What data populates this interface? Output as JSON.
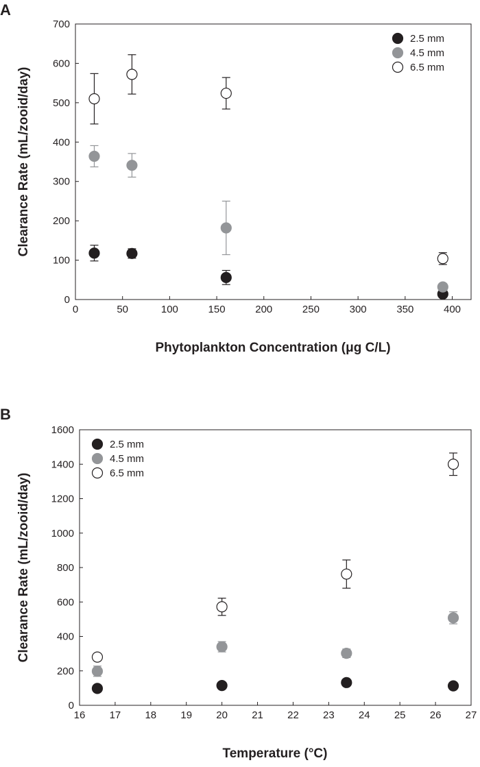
{
  "chart_data": [
    {
      "type": "scatter",
      "panel_label": "A",
      "xlabel": "Phytoplankton Concentration (μg C/L)",
      "ylabel": "Clearance Rate (mL/zooid/day)",
      "xlim": [
        0,
        420
      ],
      "ylim": [
        0,
        700
      ],
      "x_ticks": [
        0,
        50,
        100,
        150,
        200,
        250,
        300,
        350,
        400
      ],
      "y_ticks": [
        0,
        100,
        200,
        300,
        400,
        500,
        600,
        700
      ],
      "legend_position": "top-right",
      "series": [
        {
          "name": "2.5 mm",
          "marker": "filled-black",
          "color": "#231f20",
          "x": [
            20,
            60,
            160,
            390
          ],
          "y": [
            118,
            117,
            56,
            14
          ],
          "yerr": [
            20,
            12,
            18,
            6
          ]
        },
        {
          "name": "4.5 mm",
          "marker": "filled-gray",
          "color": "#939598",
          "x": [
            20,
            60,
            160,
            390
          ],
          "y": [
            364,
            341,
            182,
            32
          ],
          "yerr": [
            27,
            30,
            68,
            5
          ]
        },
        {
          "name": "6.5 mm",
          "marker": "open",
          "color": "#231f20",
          "x": [
            20,
            60,
            160,
            390
          ],
          "y": [
            510,
            572,
            524,
            104
          ],
          "yerr": [
            64,
            50,
            40,
            15
          ]
        }
      ]
    },
    {
      "type": "scatter",
      "panel_label": "B",
      "xlabel": "Temperature (°C)",
      "ylabel": "Clearance Rate (mL/zooid/day)",
      "xlim": [
        16,
        27
      ],
      "ylim": [
        0,
        1600
      ],
      "x_ticks": [
        16,
        17,
        18,
        19,
        20,
        21,
        22,
        23,
        24,
        25,
        26,
        27
      ],
      "y_ticks": [
        0,
        200,
        400,
        600,
        800,
        1000,
        1200,
        1400,
        1600
      ],
      "legend_position": "top-left",
      "series": [
        {
          "name": "2.5 mm",
          "marker": "filled-black",
          "color": "#231f20",
          "x": [
            16.5,
            20,
            23.5,
            26.5
          ],
          "y": [
            98,
            115,
            132,
            113
          ],
          "yerr": [
            0,
            0,
            0,
            0
          ]
        },
        {
          "name": "4.5 mm",
          "marker": "filled-gray",
          "color": "#939598",
          "x": [
            16.5,
            20,
            23.5,
            26.5
          ],
          "y": [
            198,
            340,
            302,
            508
          ],
          "yerr": [
            30,
            30,
            25,
            35
          ]
        },
        {
          "name": "6.5 mm",
          "marker": "open",
          "color": "#231f20",
          "x": [
            16.5,
            20,
            23.5,
            26.5
          ],
          "y": [
            280,
            572,
            762,
            1400
          ],
          "yerr": [
            0,
            50,
            82,
            65
          ]
        }
      ]
    }
  ]
}
